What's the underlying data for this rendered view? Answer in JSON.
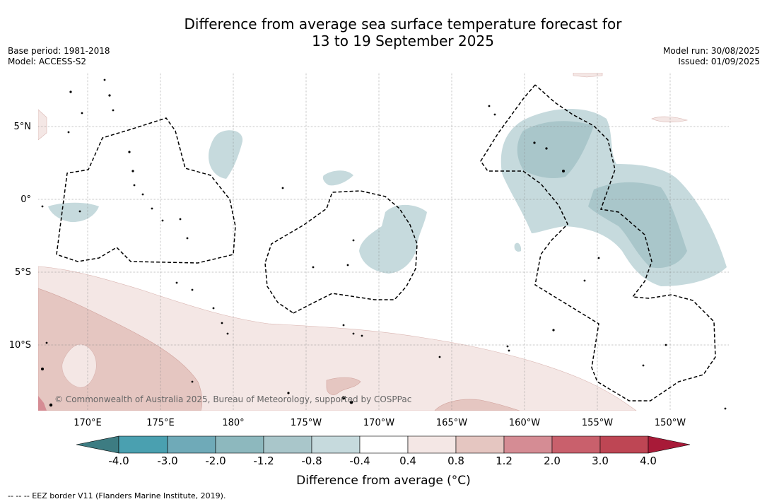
{
  "title": {
    "line1": "Difference from average sea surface temperature forecast for",
    "line2": "13 to 19 September 2025"
  },
  "meta_left": {
    "base_period": "Base period: 1981-2018",
    "model": "Model: ACCESS-S2"
  },
  "meta_right": {
    "model_run": "Model run: 30/08/2025",
    "issued": "Issued: 01/09/2025"
  },
  "map": {
    "lon_labels": [
      "170°E",
      "175°E",
      "180°",
      "175°W",
      "170°W",
      "165°W",
      "160°W",
      "155°W",
      "150°W"
    ],
    "lat_labels": [
      "5°N",
      "0°",
      "5°S",
      "10°S"
    ],
    "copyright": "© Commonwealth of Australia 2025, Bureau of Meteorology, supported by COSPPac"
  },
  "colorbar": {
    "tick_labels": [
      "-4.0",
      "-3.0",
      "-2.0",
      "-1.2",
      "-0.8",
      "-0.4",
      "0.4",
      "0.8",
      "1.2",
      "2.0",
      "3.0",
      "4.0"
    ],
    "colors": [
      "#3d7c82",
      "#4aa0b0",
      "#6faab8",
      "#8db8be",
      "#a9c6ca",
      "#c6dadd",
      "#ffffff",
      "#f4e7e5",
      "#e5c6c1",
      "#d58c94",
      "#c9606c",
      "#be4654",
      "#a81a38"
    ],
    "title": "Difference from average (°C)"
  },
  "footnote": "--  --  -- EEZ border V11 (Flanders Marine Institute, 2019)."
}
